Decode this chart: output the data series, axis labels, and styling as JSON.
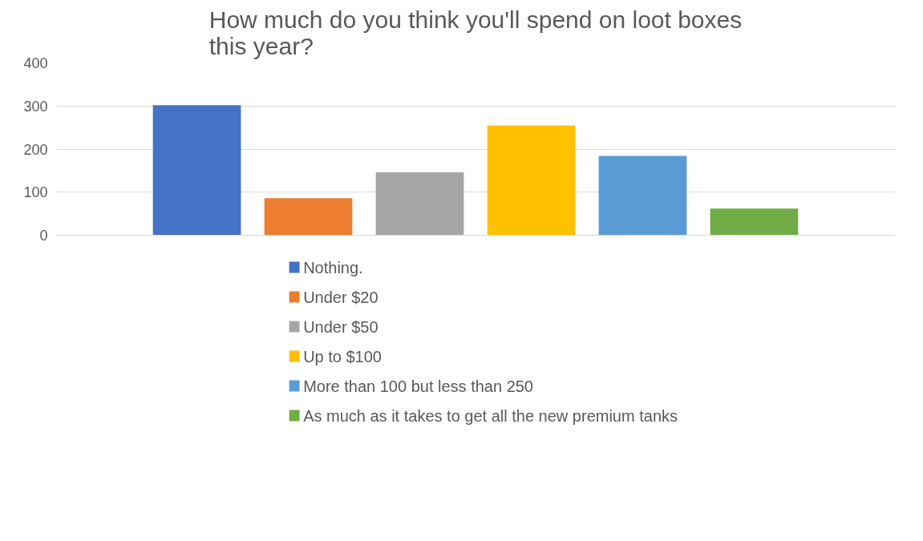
{
  "chart_data": {
    "type": "bar",
    "title": "How much do you think you'll spend on loot boxes this year?",
    "categories": [
      null
    ],
    "series": [
      {
        "name": "Nothing.",
        "color": "#4472c4",
        "values": [
          302
        ]
      },
      {
        "name": "Under $20",
        "color": "#ed7d31",
        "values": [
          86
        ]
      },
      {
        "name": "Under $50",
        "color": "#a5a5a5",
        "values": [
          146
        ]
      },
      {
        "name": "Up to $100",
        "color": "#ffc000",
        "values": [
          255
        ]
      },
      {
        "name": "More than 100 but less than 250",
        "color": "#5b9bd5",
        "values": [
          184
        ]
      },
      {
        "name": "As much as it takes to get all the new premium tanks",
        "color": "#70ad47",
        "values": [
          62
        ]
      }
    ],
    "ylim": [
      0,
      400
    ],
    "yticks": [
      0,
      100,
      200,
      300,
      400
    ],
    "grid": "y",
    "legend": "bottom",
    "tick_labels": "y"
  }
}
